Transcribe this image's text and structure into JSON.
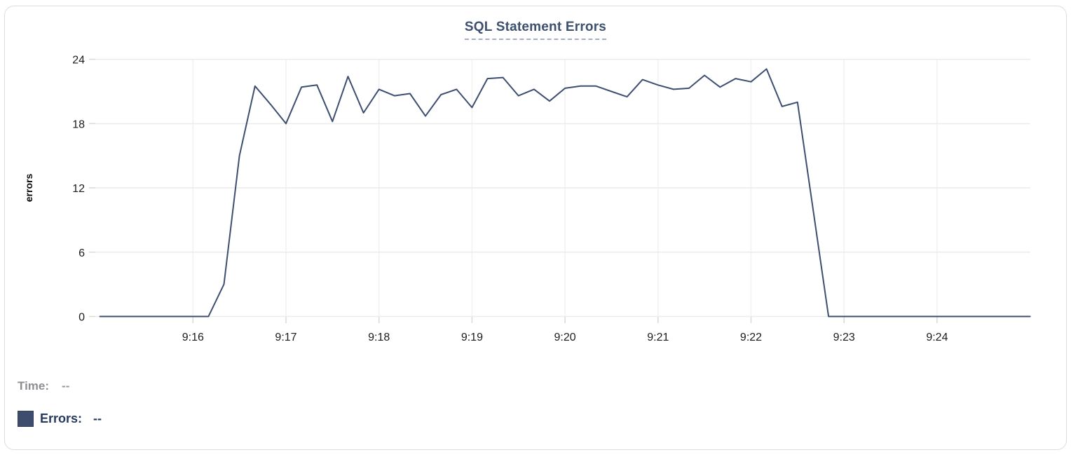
{
  "card": {
    "background": "#ffffff",
    "border_color": "#dcdcdc"
  },
  "chart_data": {
    "type": "line",
    "title": "SQL Statement Errors",
    "xlabel": "",
    "ylabel": "errors",
    "ylim": [
      0,
      24
    ],
    "y_ticks": [
      0,
      6,
      12,
      18,
      24
    ],
    "x_ticks": [
      "9:16",
      "9:17",
      "9:18",
      "9:19",
      "9:20",
      "9:21",
      "9:22",
      "9:23",
      "9:24"
    ],
    "x_range": [
      "9:15:00",
      "9:25:00"
    ],
    "grid": true,
    "legend_position": "bottom-left",
    "series": [
      {
        "name": "Errors",
        "color": "#3d4e71",
        "start_time": "9:15:00",
        "interval_seconds": 10,
        "values": [
          0,
          0,
          0,
          0,
          0,
          0,
          0,
          0,
          3,
          15,
          21.5,
          19.8,
          18,
          21.4,
          21.6,
          18.2,
          22.4,
          19,
          21.2,
          20.6,
          20.8,
          18.7,
          20.7,
          21.2,
          19.5,
          22.2,
          22.3,
          20.6,
          21.2,
          20.1,
          21.3,
          21.5,
          21.5,
          21,
          20.5,
          22.1,
          21.6,
          21.2,
          21.3,
          22.5,
          21.4,
          22.2,
          21.9,
          23.1,
          19.6,
          20,
          10,
          0,
          0,
          0,
          0,
          0,
          0,
          0,
          0,
          0,
          0,
          0,
          0,
          0,
          0
        ]
      }
    ]
  },
  "tooltip_panel": {
    "time_label": "Time:",
    "time_value": "--",
    "errors_label": "Errors:",
    "errors_value": "--",
    "swatch_color": "#3d4d6e"
  },
  "colors": {
    "line": "#3d4e71",
    "title": "#3e5070",
    "grid_horizontal": "#ebebeb",
    "grid_vertical": "#f1f1f1",
    "tick_mark": "#d9d9d9",
    "tick_text": "#1c1c1e",
    "time_text": "#8e8e93",
    "errors_text": "#26395f"
  }
}
